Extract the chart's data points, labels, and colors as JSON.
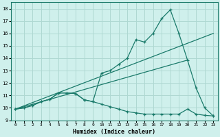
{
  "xlabel": "Humidex (Indice chaleur)",
  "bg_color": "#cff0ec",
  "grid_color": "#aed8d2",
  "line_color": "#1a7a6a",
  "xlim": [
    -0.5,
    23.5
  ],
  "ylim": [
    9.0,
    18.5
  ],
  "xticks": [
    0,
    1,
    2,
    3,
    4,
    5,
    6,
    7,
    8,
    9,
    10,
    11,
    12,
    13,
    14,
    15,
    16,
    17,
    18,
    19,
    20,
    21,
    22,
    23
  ],
  "yticks": [
    9,
    10,
    11,
    12,
    13,
    14,
    15,
    16,
    17,
    18
  ],
  "line_main_x": [
    0,
    1,
    2,
    3,
    4,
    5,
    6,
    7,
    8,
    9,
    10,
    11,
    12,
    13,
    14,
    15,
    16,
    17,
    18,
    19,
    20,
    21,
    22,
    23
  ],
  "line_main_y": [
    9.9,
    10.0,
    10.2,
    10.5,
    10.7,
    11.2,
    11.2,
    11.15,
    10.65,
    10.5,
    12.8,
    13.0,
    13.5,
    14.0,
    15.5,
    15.3,
    16.0,
    17.2,
    17.9,
    16.0,
    13.85,
    11.6,
    10.0,
    9.35
  ],
  "line_low_x": [
    0,
    1,
    2,
    3,
    4,
    5,
    6,
    7,
    8,
    9,
    10,
    11,
    12,
    13,
    14,
    15,
    16,
    17,
    18,
    19,
    20,
    21,
    22,
    23
  ],
  "line_low_y": [
    9.9,
    10.0,
    10.2,
    10.5,
    10.7,
    11.2,
    11.2,
    11.15,
    10.65,
    10.5,
    10.3,
    10.1,
    9.9,
    9.7,
    9.6,
    9.5,
    9.5,
    9.5,
    9.5,
    9.5,
    9.9,
    9.5,
    9.4,
    9.35
  ],
  "trend1_x": [
    0,
    23
  ],
  "trend1_y": [
    9.9,
    16.0
  ],
  "trend2_x": [
    0,
    20
  ],
  "trend2_y": [
    9.9,
    13.85
  ]
}
